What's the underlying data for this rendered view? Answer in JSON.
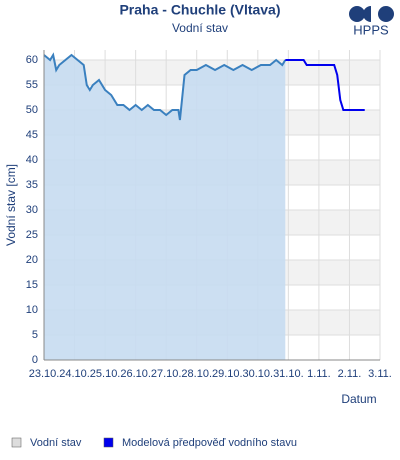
{
  "chart_data": {
    "type": "line",
    "title": "Praha - Chuchle (Vltava)",
    "subtitle": "Vodní stav",
    "logo": "HPPS",
    "y_label": "Vodní stav [cm]",
    "x_label": "Datum",
    "ylim": [
      0,
      62
    ],
    "yticks": [
      0,
      5,
      10,
      15,
      20,
      25,
      30,
      35,
      40,
      45,
      50,
      55,
      60
    ],
    "xlim": [
      0,
      11
    ],
    "xticks": [
      {
        "value": 0,
        "label": "23.10."
      },
      {
        "value": 1,
        "label": "24.10."
      },
      {
        "value": 2,
        "label": "25.10."
      },
      {
        "value": 3,
        "label": "26.10."
      },
      {
        "value": 4,
        "label": "27.10."
      },
      {
        "value": 5,
        "label": "28.10."
      },
      {
        "value": 6,
        "label": "29.10."
      },
      {
        "value": 7,
        "label": "30.10."
      },
      {
        "value": 8,
        "label": "31.10."
      },
      {
        "value": 9,
        "label": "1.11."
      },
      {
        "value": 10,
        "label": "2.11."
      },
      {
        "value": 11,
        "label": "3.11."
      }
    ],
    "grid": true,
    "series": [
      {
        "name": "Vodní stav",
        "color": "#3a80bf",
        "fill": "#c6dcf1",
        "legend_color": "#dddddd",
        "x": [
          0,
          0.2,
          0.3,
          0.4,
          0.5,
          0.7,
          0.9,
          1.1,
          1.3,
          1.4,
          1.5,
          1.6,
          1.8,
          2.0,
          2.2,
          2.4,
          2.6,
          2.8,
          3.0,
          3.2,
          3.4,
          3.6,
          3.8,
          4.0,
          4.2,
          4.4,
          4.45,
          4.5,
          4.6,
          4.8,
          5.0,
          5.3,
          5.6,
          5.9,
          6.2,
          6.5,
          6.8,
          7.1,
          7.4,
          7.6,
          7.8,
          7.9
        ],
        "values": [
          61,
          60,
          61,
          58,
          59,
          60,
          61,
          60,
          59,
          55,
          54,
          55,
          56,
          54,
          53,
          51,
          51,
          50,
          51,
          50,
          51,
          50,
          50,
          49,
          50,
          50,
          48,
          51,
          57,
          58,
          58,
          59,
          58,
          59,
          58,
          59,
          58,
          59,
          59,
          60,
          59,
          60
        ]
      },
      {
        "name": "Modelová předpověď vodního stavu",
        "color": "#0000ee",
        "legend_color": "#0000ee",
        "x": [
          7.9,
          8.5,
          8.6,
          9.5,
          9.6,
          9.7,
          9.8,
          10.5
        ],
        "values": [
          60,
          60,
          59,
          59,
          57,
          52,
          50,
          50
        ]
      }
    ]
  }
}
